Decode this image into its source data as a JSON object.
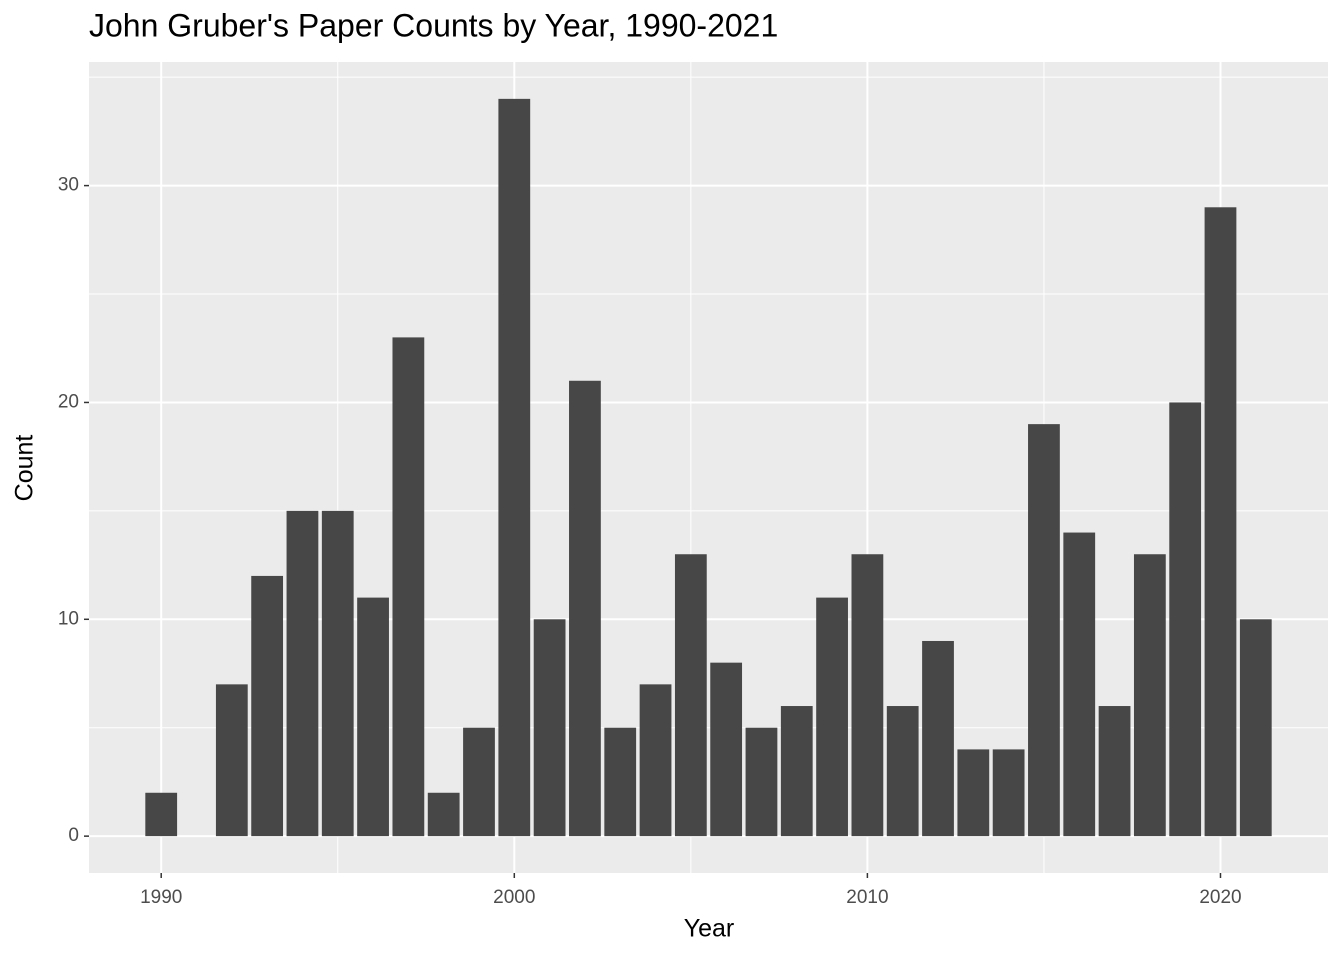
{
  "chart_data": {
    "type": "bar",
    "title": "John Gruber's Paper Counts by Year, 1990-2021",
    "xlabel": "Year",
    "ylabel": "Count",
    "x": [
      1990,
      1992,
      1993,
      1994,
      1995,
      1996,
      1997,
      1998,
      1999,
      2000,
      2001,
      2002,
      2003,
      2004,
      2005,
      2006,
      2007,
      2008,
      2009,
      2010,
      2011,
      2012,
      2013,
      2014,
      2015,
      2016,
      2017,
      2018,
      2019,
      2020,
      2021
    ],
    "values": [
      2,
      7,
      12,
      15,
      15,
      11,
      23,
      2,
      5,
      34,
      10,
      21,
      5,
      7,
      13,
      8,
      5,
      6,
      11,
      13,
      6,
      9,
      4,
      4,
      19,
      14,
      6,
      13,
      20,
      29,
      10
    ],
    "color": "#474747",
    "xlim": [
      1987.955,
      2023.045
    ],
    "xticks": [
      1990,
      2000,
      2010,
      2020
    ],
    "ylim": [
      -1.7,
      35.7
    ],
    "yticks": [
      0,
      10,
      20,
      30
    ],
    "x_minor_grid": [
      1995,
      2005,
      2015
    ],
    "y_minor_grid": [
      5,
      15,
      25,
      35
    ],
    "grid": true
  }
}
